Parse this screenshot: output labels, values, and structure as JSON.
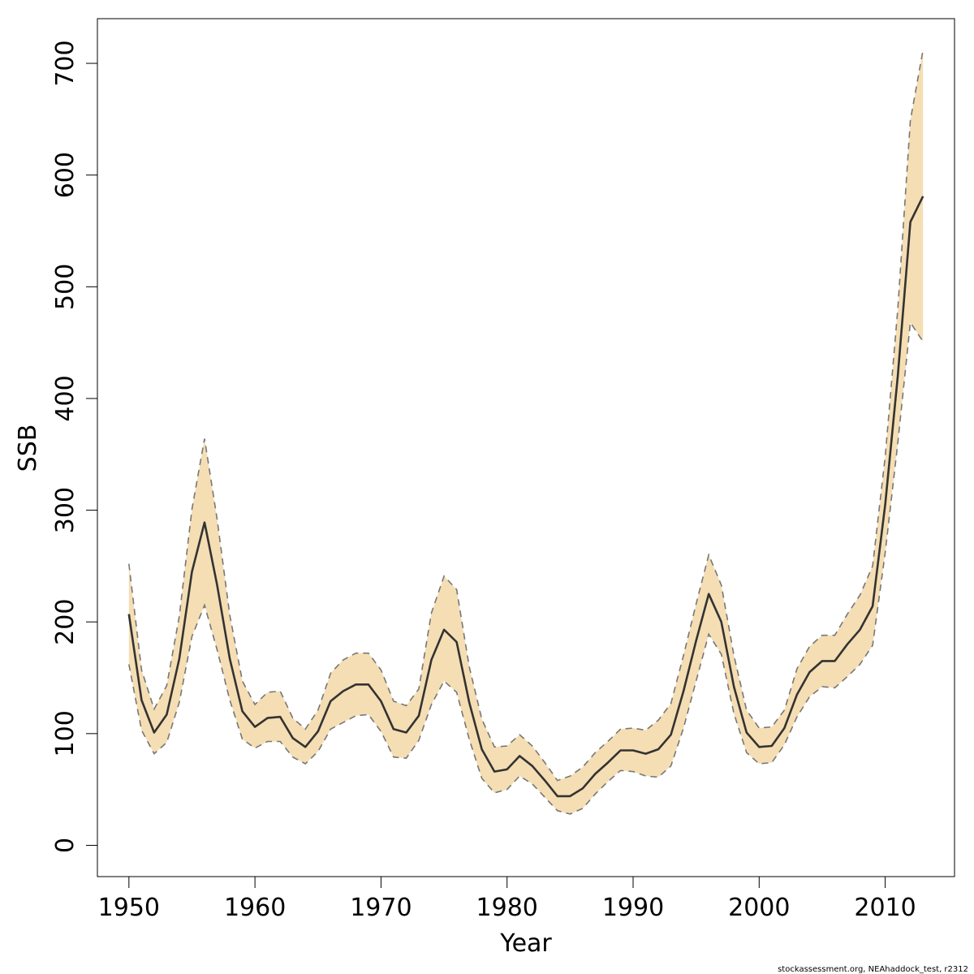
{
  "chart_data": {
    "type": "line",
    "title": "",
    "xlabel": "Year",
    "ylabel": "SSB",
    "xlim": [
      1947.5,
      2015.5
    ],
    "ylim": [
      -28,
      740
    ],
    "xticks": [
      1950,
      1960,
      1970,
      1980,
      1990,
      2000,
      2010
    ],
    "yticks": [
      0,
      100,
      200,
      300,
      400,
      500,
      600,
      700
    ],
    "grid": false,
    "legend": "none",
    "band_fill_color": "#F5DEB3",
    "line_color": "#333333",
    "bound_line_color": "#777777",
    "x": [
      1950,
      1951,
      1952,
      1953,
      1954,
      1955,
      1956,
      1957,
      1958,
      1959,
      1960,
      1961,
      1962,
      1963,
      1964,
      1965,
      1966,
      1967,
      1968,
      1969,
      1970,
      1971,
      1972,
      1973,
      1974,
      1975,
      1976,
      1977,
      1978,
      1979,
      1980,
      1981,
      1982,
      1983,
      1984,
      1985,
      1986,
      1987,
      1988,
      1989,
      1990,
      1991,
      1992,
      1993,
      1994,
      1995,
      1996,
      1997,
      1998,
      1999,
      2000,
      2001,
      2002,
      2003,
      2004,
      2005,
      2006,
      2007,
      2008,
      2009,
      2010,
      2011,
      2012,
      2013
    ],
    "series": [
      {
        "role": "estimate",
        "values": [
          207,
          130,
          101,
          117,
          167,
          245,
          289,
          233,
          167,
          120,
          106,
          114,
          115,
          96,
          88,
          102,
          129,
          138,
          144,
          144,
          129,
          104,
          101,
          116,
          166,
          193,
          182,
          128,
          86,
          66,
          68,
          80,
          71,
          58,
          44,
          44,
          51,
          64,
          74,
          85,
          85,
          82,
          86,
          99,
          138,
          183,
          225,
          200,
          142,
          101,
          88,
          89,
          105,
          135,
          155,
          165,
          165,
          180,
          193,
          214,
          305,
          420,
          558,
          581
        ]
      },
      {
        "role": "lower",
        "values": [
          162,
          103,
          82,
          92,
          128,
          187,
          215,
          175,
          130,
          95,
          87,
          93,
          93,
          79,
          73,
          84,
          104,
          110,
          116,
          117,
          102,
          79,
          78,
          94,
          126,
          147,
          137,
          95,
          60,
          47,
          50,
          62,
          55,
          43,
          31,
          28,
          33,
          46,
          57,
          67,
          66,
          62,
          61,
          71,
          105,
          147,
          189,
          171,
          118,
          83,
          73,
          74,
          90,
          115,
          133,
          142,
          141,
          151,
          162,
          179,
          262,
          360,
          468,
          451
        ]
      },
      {
        "role": "upper",
        "values": [
          252,
          157,
          122,
          143,
          205,
          301,
          364,
          292,
          206,
          147,
          126,
          137,
          138,
          114,
          104,
          121,
          154,
          166,
          172,
          172,
          157,
          129,
          125,
          140,
          208,
          241,
          229,
          160,
          113,
          88,
          89,
          99,
          89,
          74,
          58,
          62,
          70,
          83,
          93,
          104,
          105,
          103,
          112,
          127,
          170,
          216,
          260,
          233,
          170,
          121,
          105,
          106,
          121,
          158,
          178,
          188,
          188,
          207,
          224,
          250,
          348,
          480,
          649,
          712
        ]
      }
    ]
  },
  "footer": {
    "note": "stockassessment.org, NEAhaddock_test, r2312"
  }
}
